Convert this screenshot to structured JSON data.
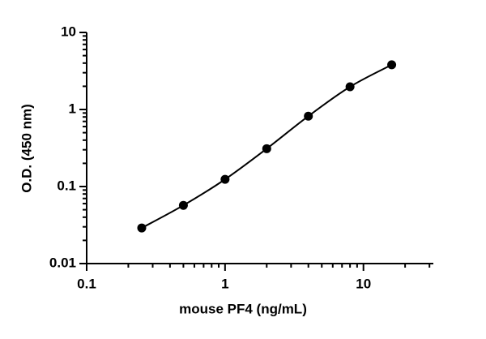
{
  "chart_data": {
    "type": "scatter",
    "x_label": "mouse PF4 (ng/mL)",
    "y_label": "O.D. (450 nm)",
    "x": [
      0.25,
      0.5,
      1,
      2,
      4,
      8,
      16
    ],
    "series": [
      {
        "color": "#000000",
        "values": [
          0.029,
          0.057,
          0.124,
          0.31,
          0.82,
          1.97,
          3.8
        ]
      }
    ],
    "xscale": "log",
    "yscale": "log",
    "curve": true,
    "xlim": [
      0.1,
      32
    ],
    "ylim": [
      0.01,
      10
    ],
    "xticks": [
      0.1,
      1,
      10
    ],
    "yticks": [
      0.01,
      0.1,
      1,
      10
    ],
    "xminorticks": [
      0.2,
      0.3,
      0.4,
      0.5,
      0.6,
      0.7,
      0.8,
      0.9,
      2,
      3,
      4,
      5,
      6,
      7,
      8,
      9,
      20,
      30
    ],
    "yminorticks": [
      0.02,
      0.03,
      0.04,
      0.05,
      0.06,
      0.07,
      0.08,
      0.09,
      0.2,
      0.3,
      0.4,
      0.5,
      0.6,
      0.7,
      0.8,
      0.9,
      2,
      3,
      4,
      5,
      6,
      7,
      8,
      9
    ]
  }
}
